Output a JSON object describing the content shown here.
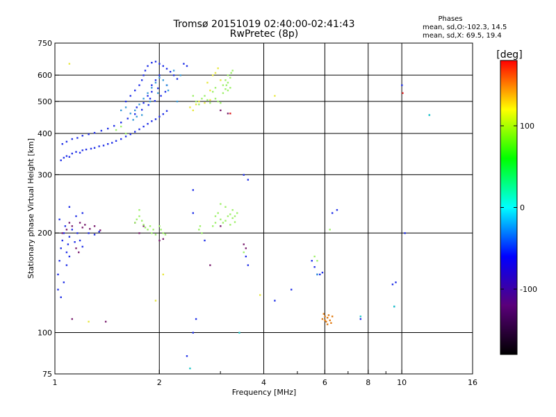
{
  "title": {
    "line1": "Tromsø 20151019 02:40:00-02:41:43",
    "line2": "RwPretec (8p)"
  },
  "stats": {
    "heading": "Phases",
    "line_o": "mean, sd,O:-102.3, 14.5",
    "line_x": "mean, sd,X:  69.5, 19.4"
  },
  "chart_data": {
    "type": "scatter",
    "xlabel": "Frequency [MHz]",
    "ylabel": "Stationary phase Virtual Height [km]",
    "x_scale": "log",
    "y_scale": "log",
    "xlim": [
      1,
      16
    ],
    "ylim": [
      75,
      750
    ],
    "x_ticks": [
      1,
      2,
      4,
      6,
      8,
      10,
      16
    ],
    "x_tick_labels": [
      "1",
      "2",
      "4",
      "6",
      "8",
      "10",
      "16"
    ],
    "x_minor_ticks": [
      3,
      5,
      7,
      9
    ],
    "y_ticks": [
      75,
      100,
      200,
      300,
      400,
      500,
      600,
      750
    ],
    "y_tick_labels": [
      "75",
      "100",
      "200",
      "300",
      "400",
      "500",
      "600",
      "750"
    ],
    "grid": true,
    "colorbar": {
      "label": "[deg]",
      "min": -180,
      "max": 180,
      "ticks": [
        -100,
        0,
        100
      ],
      "tick_labels": [
        "-100",
        "0",
        "100"
      ],
      "colors": [
        "#000000",
        "#5a007a",
        "#0000ff",
        "#00ffff",
        "#00ff00",
        "#ffff00",
        "#ff0000"
      ]
    },
    "series": [
      {
        "color": "#1f2fe8",
        "points": [
          [
            1.04,
            332
          ],
          [
            1.06,
            338
          ],
          [
            1.08,
            342
          ],
          [
            1.1,
            340
          ],
          [
            1.12,
            348
          ],
          [
            1.15,
            352
          ],
          [
            1.18,
            350
          ],
          [
            1.2,
            356
          ],
          [
            1.23,
            358
          ],
          [
            1.27,
            360
          ],
          [
            1.3,
            362
          ],
          [
            1.34,
            366
          ],
          [
            1.38,
            368
          ],
          [
            1.42,
            372
          ],
          [
            1.46,
            375
          ],
          [
            1.5,
            380
          ],
          [
            1.55,
            385
          ],
          [
            1.6,
            392
          ],
          [
            1.65,
            398
          ],
          [
            1.7,
            405
          ],
          [
            1.75,
            412
          ],
          [
            1.8,
            420
          ],
          [
            1.85,
            428
          ],
          [
            1.9,
            436
          ],
          [
            1.95,
            442
          ],
          [
            2.0,
            450
          ],
          [
            2.05,
            458
          ],
          [
            2.1,
            468
          ],
          [
            1.05,
            372
          ],
          [
            1.08,
            378
          ],
          [
            1.12,
            385
          ],
          [
            1.16,
            388
          ],
          [
            1.2,
            394
          ],
          [
            1.25,
            398
          ],
          [
            1.3,
            402
          ],
          [
            1.36,
            408
          ],
          [
            1.42,
            414
          ],
          [
            1.48,
            422
          ],
          [
            1.55,
            432
          ],
          [
            1.62,
            444
          ],
          [
            1.7,
            458
          ],
          [
            1.78,
            472
          ],
          [
            1.86,
            488
          ],
          [
            1.94,
            502
          ],
          [
            2.02,
            520
          ],
          [
            2.08,
            535
          ],
          [
            1.6,
            500
          ],
          [
            1.65,
            520
          ],
          [
            1.7,
            540
          ],
          [
            1.75,
            560
          ],
          [
            1.78,
            580
          ],
          [
            1.8,
            600
          ],
          [
            1.82,
            620
          ],
          [
            1.85,
            640
          ],
          [
            1.9,
            655
          ],
          [
            1.95,
            660
          ],
          [
            2.0,
            650
          ],
          [
            2.05,
            640
          ],
          [
            2.1,
            628
          ],
          [
            2.15,
            615
          ],
          [
            2.2,
            600
          ],
          [
            2.25,
            585
          ],
          [
            2.35,
            650
          ],
          [
            2.4,
            640
          ],
          [
            1.9,
            560
          ],
          [
            1.95,
            580
          ],
          [
            2.0,
            600
          ],
          [
            1.85,
            520
          ],
          [
            1.9,
            535
          ],
          [
            1.98,
            548
          ],
          [
            2.1,
            560
          ],
          [
            1.72,
            480
          ],
          [
            1.8,
            495
          ],
          [
            1.88,
            510
          ],
          [
            1.02,
            150
          ],
          [
            1.03,
            165
          ],
          [
            1.04,
            180
          ],
          [
            1.05,
            190
          ],
          [
            1.06,
            200
          ],
          [
            1.07,
            210
          ],
          [
            1.08,
            175
          ],
          [
            1.09,
            185
          ],
          [
            1.1,
            195
          ],
          [
            1.12,
            205
          ],
          [
            1.02,
            135
          ],
          [
            1.04,
            128
          ],
          [
            1.06,
            142
          ],
          [
            1.08,
            160
          ],
          [
            1.1,
            170
          ],
          [
            1.14,
            188
          ],
          [
            1.16,
            200
          ],
          [
            1.18,
            190
          ],
          [
            1.2,
            182
          ],
          [
            1.03,
            220
          ],
          [
            1.25,
            200
          ],
          [
            1.3,
            198
          ],
          [
            1.34,
            202
          ],
          [
            1.15,
            225
          ],
          [
            1.2,
            230
          ],
          [
            1.1,
            240
          ],
          [
            2.5,
            230
          ],
          [
            2.5,
            270
          ],
          [
            2.4,
            85
          ],
          [
            2.5,
            100
          ],
          [
            2.55,
            110
          ],
          [
            2.7,
            190
          ],
          [
            3.5,
            300
          ],
          [
            3.6,
            290
          ],
          [
            3.55,
            170
          ],
          [
            3.6,
            160
          ],
          [
            5.7,
            150
          ],
          [
            5.8,
            150
          ],
          [
            5.9,
            152
          ],
          [
            5.6,
            158
          ],
          [
            5.5,
            165
          ],
          [
            4.8,
            135
          ],
          [
            4.3,
            125
          ],
          [
            6.3,
            230
          ],
          [
            6.5,
            235
          ],
          [
            9.4,
            140
          ],
          [
            9.6,
            142
          ],
          [
            10.0,
            560
          ],
          [
            10.2,
            200
          ],
          [
            7.6,
            110
          ],
          [
            9.5,
            120
          ]
        ]
      },
      {
        "color": "#3a9bd9",
        "points": [
          [
            1.7,
            470
          ],
          [
            1.75,
            490
          ],
          [
            1.8,
            510
          ],
          [
            1.85,
            530
          ],
          [
            1.9,
            550
          ],
          [
            1.95,
            570
          ],
          [
            2.0,
            590
          ],
          [
            2.05,
            580
          ],
          [
            2.1,
            560
          ],
          [
            1.78,
            455
          ],
          [
            1.88,
            500
          ],
          [
            1.98,
            530
          ],
          [
            2.12,
            540
          ],
          [
            1.65,
            460
          ],
          [
            1.68,
            440
          ],
          [
            1.72,
            450
          ],
          [
            2.3,
            600
          ],
          [
            2.2,
            620
          ],
          [
            2.25,
            500
          ],
          [
            1.55,
            470
          ],
          [
            1.6,
            480
          ],
          [
            12,
            455
          ],
          [
            5.7,
            150
          ]
        ]
      },
      {
        "color": "#7a1e6e",
        "points": [
          [
            1.05,
            200
          ],
          [
            1.08,
            205
          ],
          [
            1.1,
            215
          ],
          [
            1.12,
            210
          ],
          [
            1.18,
            215
          ],
          [
            1.2,
            208
          ],
          [
            1.22,
            212
          ],
          [
            1.26,
            206
          ],
          [
            1.3,
            210
          ],
          [
            1.35,
            204
          ],
          [
            1.15,
            180
          ],
          [
            1.17,
            175
          ],
          [
            1.12,
            110
          ],
          [
            1.4,
            108
          ],
          [
            1.7,
            215
          ],
          [
            1.8,
            210
          ],
          [
            1.75,
            200
          ],
          [
            2.0,
            190
          ],
          [
            2.05,
            192
          ],
          [
            2.8,
            160
          ],
          [
            3.0,
            210
          ],
          [
            3.5,
            185
          ],
          [
            3.55,
            180
          ],
          [
            3.15,
            460
          ],
          [
            3.0,
            470
          ]
        ]
      },
      {
        "color": "#9ef06a",
        "points": [
          [
            1.7,
            215
          ],
          [
            1.72,
            220
          ],
          [
            1.75,
            225
          ],
          [
            1.78,
            218
          ],
          [
            1.8,
            212
          ],
          [
            1.82,
            208
          ],
          [
            1.85,
            205
          ],
          [
            1.88,
            210
          ],
          [
            1.9,
            200
          ],
          [
            1.92,
            205
          ],
          [
            1.95,
            198
          ],
          [
            2.0,
            210
          ],
          [
            2.02,
            205
          ],
          [
            2.05,
            200
          ],
          [
            2.08,
            198
          ],
          [
            1.75,
            235
          ],
          [
            1.6,
            400
          ],
          [
            1.55,
            420
          ],
          [
            1.5,
            410
          ],
          [
            2.6,
            205
          ],
          [
            2.62,
            210
          ],
          [
            2.65,
            200
          ],
          [
            2.9,
            225
          ],
          [
            2.95,
            230
          ],
          [
            3.0,
            220
          ],
          [
            3.05,
            215
          ],
          [
            3.1,
            218
          ],
          [
            3.15,
            225
          ],
          [
            3.2,
            228
          ],
          [
            3.25,
            222
          ],
          [
            3.3,
            216
          ],
          [
            3.35,
            230
          ],
          [
            3.1,
            240
          ],
          [
            3.0,
            245
          ],
          [
            3.2,
            212
          ],
          [
            2.85,
            210
          ],
          [
            2.9,
            215
          ],
          [
            3.25,
            235
          ],
          [
            3.3,
            225
          ],
          [
            2.5,
            520
          ],
          [
            2.55,
            500
          ],
          [
            2.6,
            490
          ],
          [
            2.65,
            510
          ],
          [
            2.7,
            520
          ],
          [
            2.75,
            505
          ],
          [
            2.8,
            495
          ],
          [
            2.9,
            510
          ],
          [
            2.95,
            500
          ],
          [
            3.0,
            495
          ],
          [
            3.05,
            530
          ],
          [
            3.1,
            545
          ],
          [
            3.12,
            560
          ],
          [
            3.15,
            570
          ],
          [
            3.2,
            590
          ],
          [
            3.22,
            610
          ],
          [
            3.25,
            620
          ],
          [
            3.15,
            600
          ],
          [
            3.1,
            580
          ],
          [
            2.85,
            535
          ],
          [
            2.9,
            550
          ],
          [
            3.05,
            560
          ],
          [
            3.15,
            540
          ],
          [
            3.2,
            550
          ],
          [
            5.6,
            170
          ],
          [
            5.7,
            165
          ],
          [
            3.5,
            175
          ],
          [
            6.2,
            205
          ]
        ]
      },
      {
        "color": "#e8e840",
        "points": [
          [
            2.45,
            480
          ],
          [
            2.5,
            470
          ],
          [
            2.55,
            490
          ],
          [
            2.6,
            500
          ],
          [
            2.7,
            495
          ],
          [
            2.8,
            505
          ],
          [
            2.85,
            600
          ],
          [
            2.9,
            610
          ],
          [
            2.95,
            630
          ],
          [
            3.0,
            580
          ],
          [
            2.75,
            570
          ],
          [
            2.8,
            540
          ],
          [
            4.3,
            520
          ],
          [
            1.1,
            650
          ],
          [
            1.25,
            108
          ],
          [
            1.95,
            125
          ],
          [
            3.9,
            130
          ],
          [
            2.05,
            150
          ]
        ]
      },
      {
        "color": "#e07a10",
        "points": [
          [
            5.9,
            110
          ],
          [
            6.0,
            112
          ],
          [
            6.05,
            108
          ],
          [
            6.1,
            111
          ],
          [
            6.15,
            113
          ],
          [
            6.2,
            109
          ],
          [
            6.3,
            112
          ],
          [
            5.95,
            114
          ],
          [
            6.25,
            107
          ],
          [
            6.1,
            106
          ],
          [
            6.0,
            109
          ]
        ]
      },
      {
        "color": "#e02020",
        "points": [
          [
            10.05,
            530
          ],
          [
            3.2,
            460
          ]
        ]
      },
      {
        "color": "#20c8c8",
        "points": [
          [
            2.45,
            78
          ],
          [
            3.4,
            100
          ],
          [
            9.5,
            120
          ],
          [
            7.6,
            112
          ],
          [
            12.0,
            455
          ]
        ]
      }
    ]
  }
}
